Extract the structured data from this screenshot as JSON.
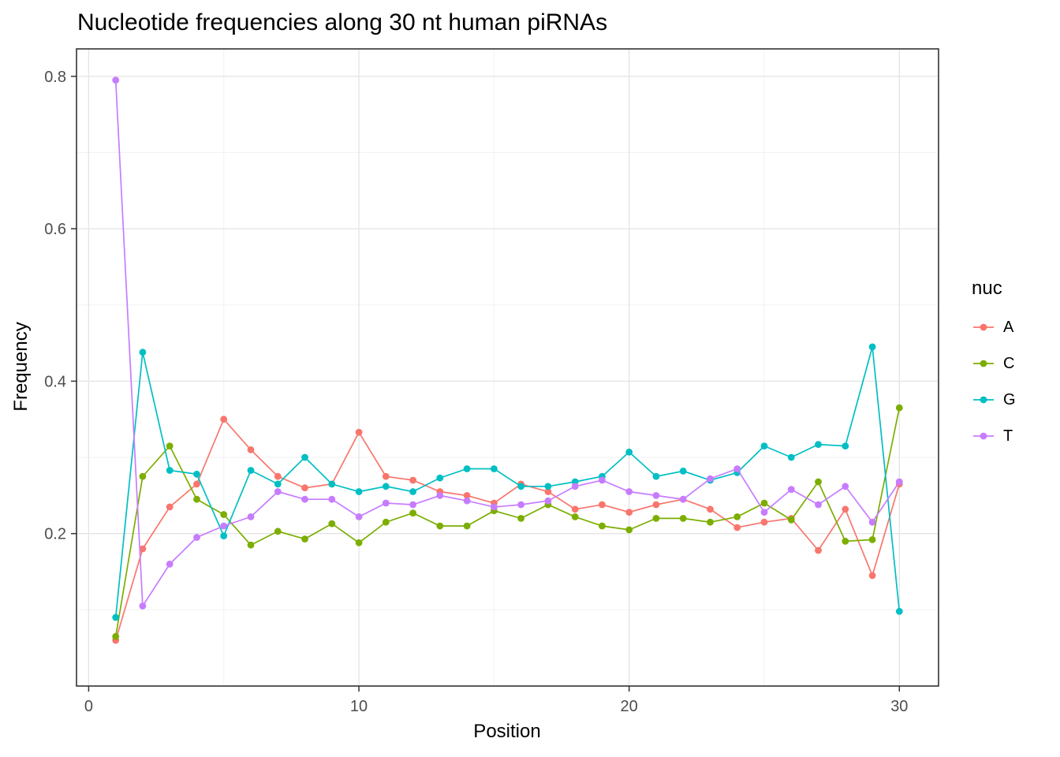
{
  "chart_data": {
    "type": "line",
    "title": "Nucleotide frequencies along 30 nt human piRNAs",
    "xlabel": "Position",
    "ylabel": "Frequency",
    "legend_title": "nuc",
    "legend_position": "right",
    "grid": true,
    "panel_background": "#ffffff",
    "panel_border_color": "#333333",
    "grid_major_color": "#e4e4e4",
    "grid_minor_color": "#f2f2f2",
    "tick_label_color": "#4d4d4d",
    "xlim": [
      -0.45,
      31.45
    ],
    "ylim": [
      0.0,
      0.836
    ],
    "x_ticks": [
      0,
      10,
      20,
      30
    ],
    "y_ticks": [
      0.2,
      0.4,
      0.6,
      0.8
    ],
    "x_minor_ticks": [
      5,
      15,
      25
    ],
    "y_minor_ticks": [
      0.1,
      0.3,
      0.5,
      0.7
    ],
    "x": [
      1,
      2,
      3,
      4,
      5,
      6,
      7,
      8,
      9,
      10,
      11,
      12,
      13,
      14,
      15,
      16,
      17,
      18,
      19,
      20,
      21,
      22,
      23,
      24,
      25,
      26,
      27,
      28,
      29,
      30
    ],
    "series": [
      {
        "name": "A",
        "color": "#F8766D",
        "values": [
          0.06,
          0.18,
          0.235,
          0.265,
          0.35,
          0.31,
          0.275,
          0.26,
          0.265,
          0.333,
          0.275,
          0.27,
          0.255,
          0.25,
          0.24,
          0.265,
          0.255,
          0.232,
          0.238,
          0.228,
          0.238,
          0.245,
          0.232,
          0.208,
          0.215,
          0.22,
          0.178,
          0.232,
          0.145,
          0.265
        ]
      },
      {
        "name": "C",
        "color": "#7CAE00",
        "values": [
          0.065,
          0.275,
          0.315,
          0.245,
          0.225,
          0.185,
          0.203,
          0.193,
          0.213,
          0.188,
          0.215,
          0.227,
          0.21,
          0.21,
          0.23,
          0.22,
          0.238,
          0.222,
          0.21,
          0.205,
          0.22,
          0.22,
          0.215,
          0.222,
          0.24,
          0.218,
          0.268,
          0.19,
          0.192,
          0.365
        ]
      },
      {
        "name": "G",
        "color": "#00BFC4",
        "values": [
          0.09,
          0.438,
          0.283,
          0.278,
          0.197,
          0.283,
          0.265,
          0.3,
          0.265,
          0.255,
          0.262,
          0.255,
          0.273,
          0.285,
          0.285,
          0.262,
          0.262,
          0.268,
          0.275,
          0.307,
          0.275,
          0.282,
          0.27,
          0.28,
          0.315,
          0.3,
          0.317,
          0.315,
          0.445,
          0.098
        ]
      },
      {
        "name": "T",
        "color": "#C77CFF",
        "values": [
          0.795,
          0.105,
          0.16,
          0.195,
          0.21,
          0.222,
          0.255,
          0.245,
          0.245,
          0.222,
          0.24,
          0.238,
          0.25,
          0.243,
          0.235,
          0.238,
          0.243,
          0.262,
          0.27,
          0.255,
          0.25,
          0.245,
          0.272,
          0.285,
          0.228,
          0.258,
          0.238,
          0.262,
          0.215,
          0.268
        ]
      }
    ]
  }
}
